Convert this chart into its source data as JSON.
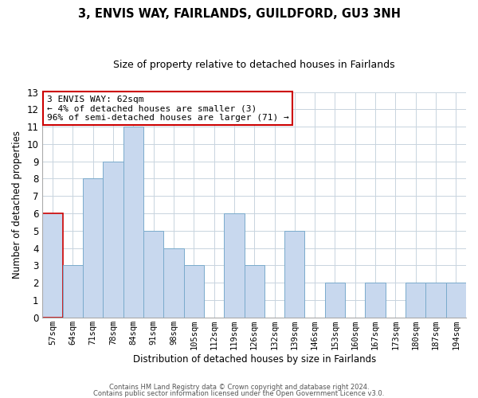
{
  "title": "3, ENVIS WAY, FAIRLANDS, GUILDFORD, GU3 3NH",
  "subtitle": "Size of property relative to detached houses in Fairlands",
  "xlabel": "Distribution of detached houses by size in Fairlands",
  "ylabel": "Number of detached properties",
  "bar_labels": [
    "57sqm",
    "64sqm",
    "71sqm",
    "78sqm",
    "84sqm",
    "91sqm",
    "98sqm",
    "105sqm",
    "112sqm",
    "119sqm",
    "126sqm",
    "132sqm",
    "139sqm",
    "146sqm",
    "153sqm",
    "160sqm",
    "167sqm",
    "173sqm",
    "180sqm",
    "187sqm",
    "194sqm"
  ],
  "bar_heights": [
    6,
    3,
    8,
    9,
    11,
    5,
    4,
    3,
    0,
    6,
    3,
    0,
    5,
    0,
    2,
    0,
    2,
    0,
    2,
    2,
    2
  ],
  "bar_color": "#c8d8ee",
  "highlight_bar_index": 0,
  "highlight_edge_color": "#cc0000",
  "normal_edge_color": "#7aabcc",
  "ylim": [
    0,
    13
  ],
  "yticks": [
    0,
    1,
    2,
    3,
    4,
    5,
    6,
    7,
    8,
    9,
    10,
    11,
    12,
    13
  ],
  "annotation_box_text": "3 ENVIS WAY: 62sqm\n← 4% of detached houses are smaller (3)\n96% of semi-detached houses are larger (71) →",
  "annotation_box_edge": "#cc0000",
  "annotation_box_facecolor": "#ffffff",
  "footer_line1": "Contains HM Land Registry data © Crown copyright and database right 2024.",
  "footer_line2": "Contains public sector information licensed under the Open Government Licence v3.0.",
  "background_color": "#ffffff",
  "grid_color": "#c8d4de"
}
